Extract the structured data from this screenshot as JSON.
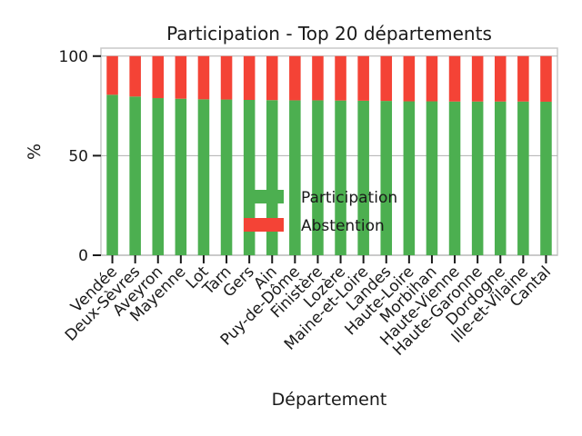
{
  "chart_data": {
    "type": "bar",
    "stacked": true,
    "title": "Participation - Top 20 départements",
    "xlabel": "Département",
    "ylabel": "%",
    "ylim": [
      0,
      104
    ],
    "yticks": [
      0,
      50,
      100
    ],
    "grid": "horizontal",
    "legend_position": "center",
    "categories": [
      "Vendée",
      "Deux-Sèvres",
      "Aveyron",
      "Mayenne",
      "Lot",
      "Tarn",
      "Gers",
      "Ain",
      "Puy-de-Dôme",
      "Finistère",
      "Lozère",
      "Maine-et-Loire",
      "Landes",
      "Haute-Loire",
      "Morbihan",
      "Haute-Vienne",
      "Haute-Garonne",
      "Dordogne",
      "Ille-et-Vilaine",
      "Cantal"
    ],
    "series": [
      {
        "name": "Participation",
        "color": "#4caf50",
        "values": [
          80.6,
          79.7,
          78.9,
          78.6,
          78.3,
          78.2,
          78.0,
          77.9,
          77.8,
          77.8,
          77.7,
          77.6,
          77.5,
          77.3,
          77.3,
          77.2,
          77.2,
          77.2,
          77.2,
          77.1
        ]
      },
      {
        "name": "Abstention",
        "color": "#f44336",
        "values": [
          19.4,
          20.3,
          21.1,
          21.4,
          21.7,
          21.8,
          22.0,
          22.1,
          22.2,
          22.2,
          22.3,
          22.4,
          22.5,
          22.7,
          22.7,
          22.8,
          22.8,
          22.8,
          22.8,
          22.9
        ]
      }
    ]
  }
}
